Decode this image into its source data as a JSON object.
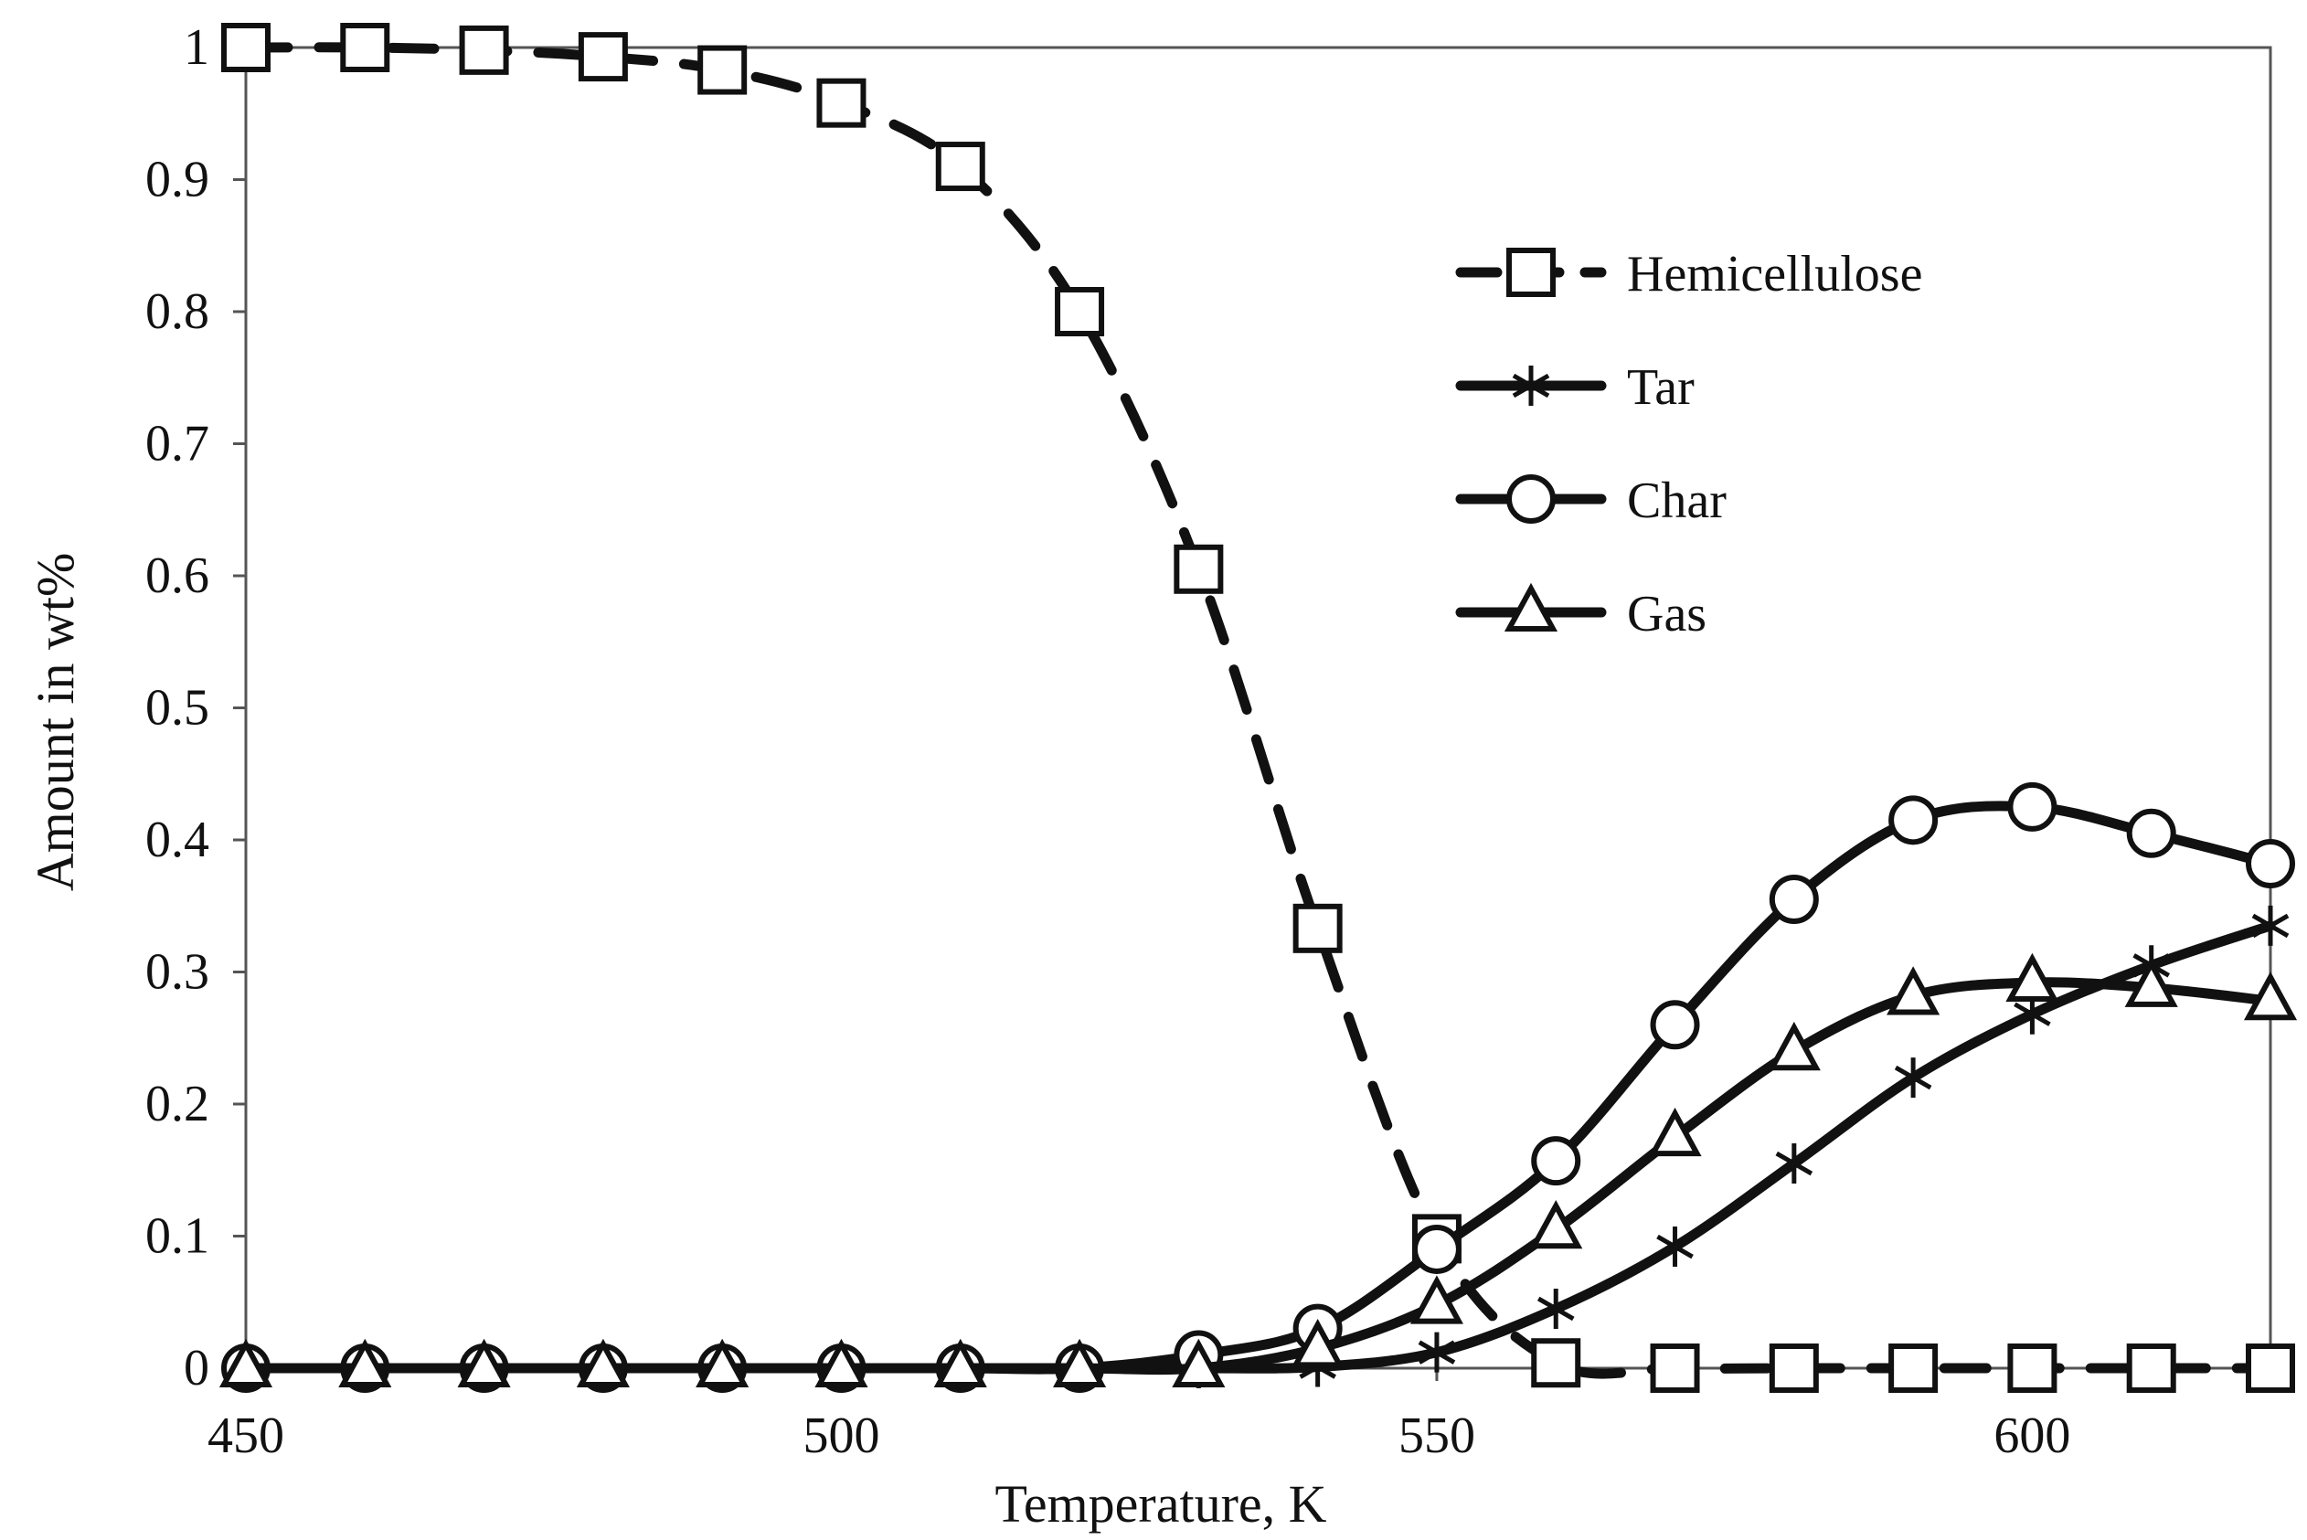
{
  "chart_data": {
    "type": "line",
    "title": "",
    "xlabel": "Temperature, K",
    "ylabel": "Amount in wt%",
    "xlim": [
      450,
      620
    ],
    "ylim": [
      0,
      1
    ],
    "x_ticks": [
      450,
      500,
      550,
      600
    ],
    "x_tick_labels": [
      "450",
      "500",
      "550",
      "600"
    ],
    "y_ticks": [
      0,
      0.1,
      0.2,
      0.3,
      0.4,
      0.5,
      0.6,
      0.7,
      0.8,
      0.9,
      1
    ],
    "y_tick_labels": [
      "0",
      "0.1",
      "0.2",
      "0.3",
      "0.4",
      "0.5",
      "0.6",
      "0.7",
      "0.8",
      "0.9",
      "1"
    ],
    "grid": false,
    "legend_position": "top-right",
    "x": [
      450,
      460,
      470,
      480,
      490,
      500,
      510,
      520,
      530,
      540,
      550,
      560,
      570,
      580,
      590,
      600,
      610,
      620
    ],
    "series": [
      {
        "name": "Hemicellulose",
        "marker": "square",
        "line": "dashed",
        "color": "#111111",
        "values": [
          1.0,
          1.0,
          0.998,
          0.993,
          0.983,
          0.958,
          0.91,
          0.8,
          0.605,
          0.333,
          0.098,
          0.004,
          0,
          0,
          0,
          0,
          0,
          0
        ]
      },
      {
        "name": "Tar",
        "marker": "asterisk",
        "line": "solid",
        "color": "#111111",
        "values": [
          0,
          0,
          0,
          0,
          0,
          0,
          0,
          0,
          0,
          0.001,
          0.012,
          0.045,
          0.092,
          0.155,
          0.22,
          0.268,
          0.305,
          0.335
        ]
      },
      {
        "name": "Char",
        "marker": "circle",
        "line": "solid",
        "color": "#111111",
        "values": [
          0,
          0,
          0,
          0,
          0,
          0,
          0,
          0,
          0.01,
          0.03,
          0.09,
          0.157,
          0.26,
          0.355,
          0.415,
          0.425,
          0.405,
          0.382
        ]
      },
      {
        "name": "Gas",
        "marker": "triangle",
        "line": "solid",
        "color": "#111111",
        "values": [
          0,
          0,
          0,
          0,
          0,
          0,
          0,
          0,
          0,
          0.015,
          0.048,
          0.105,
          0.175,
          0.24,
          0.282,
          0.292,
          0.288,
          0.278
        ]
      }
    ]
  }
}
